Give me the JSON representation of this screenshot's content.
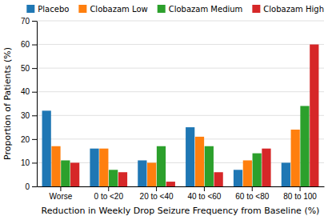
{
  "chart_data": {
    "type": "bar",
    "categories": [
      "Worse",
      "0 to <20",
      "20 to <40",
      "40 to <60",
      "60 to <80",
      "80 to 100"
    ],
    "series": [
      {
        "name": "Placebo",
        "values": [
          32,
          16,
          11,
          25,
          7,
          10
        ]
      },
      {
        "name": "Clobazam Low",
        "values": [
          17,
          16,
          10,
          21,
          11,
          24
        ]
      },
      {
        "name": "Clobazam Medium",
        "values": [
          11,
          7,
          17,
          17,
          14,
          34
        ]
      },
      {
        "name": "Clobazam High",
        "values": [
          10,
          6,
          2,
          6,
          16,
          60
        ]
      }
    ],
    "xlabel": "Reduction in Weekly Drop Seizure Frequency from Baseline (%)",
    "ylabel": "Proportion of Patients (%)",
    "ylim": [
      0,
      70
    ],
    "yticks": [
      0,
      10,
      20,
      30,
      40,
      50,
      60,
      70
    ],
    "grid": true,
    "legend": "top-right"
  }
}
